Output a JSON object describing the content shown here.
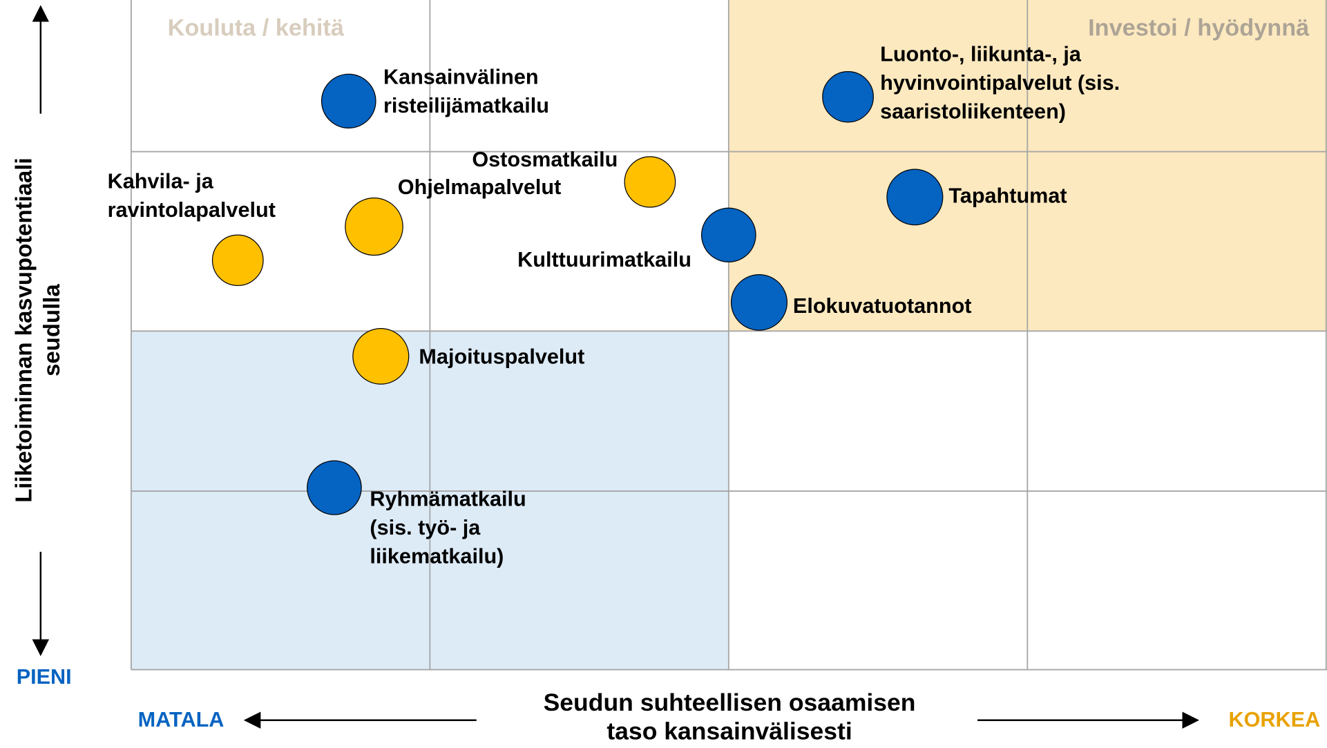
{
  "quadrants": {
    "top_left": "Kouluta / kehitä",
    "top_right": "Investoi / hyödynnä"
  },
  "y_axis": {
    "label": [
      "Liiketoiminnan kasvupotentiaali",
      "seudulla"
    ],
    "low": "PIENI"
  },
  "x_axis": {
    "label": [
      "Seudun suhteellisen osaamisen",
      "taso kansainvälisesti"
    ],
    "low": "MATALA",
    "high": "KORKEA"
  },
  "nodes": [
    {
      "label": [
        "Kansainvälinen",
        "risteilijämatkailu"
      ],
      "color": "#0563c1"
    },
    {
      "label": [
        "Luonto-, liikunta-, ja",
        "hyvinvointipalvelut (sis.",
        "saaristoliikenteen)"
      ],
      "color": "#0563c1"
    },
    {
      "label": [
        "Ostosmatkailu"
      ],
      "color": "#ffc000"
    },
    {
      "label": [
        "Ohjelmapalvelut"
      ],
      "color": "#ffc000"
    },
    {
      "label": [
        "Kahvila- ja",
        "ravintolapalvelut"
      ],
      "color": "#ffc000"
    },
    {
      "label": [
        "Tapahtumat"
      ],
      "color": "#0563c1"
    },
    {
      "label": [
        "Kulttuurimatkailu"
      ],
      "color": "#0563c1"
    },
    {
      "label": [
        "Elokuvatuotannot"
      ],
      "color": "#0563c1"
    },
    {
      "label": [
        "Majoituspalvelut"
      ],
      "color": "#ffc000"
    },
    {
      "label": [
        "Ryhmämatkailu",
        "(sis. työ- ja",
        "liikematkailu)"
      ],
      "color": "#0563c1"
    }
  ]
}
